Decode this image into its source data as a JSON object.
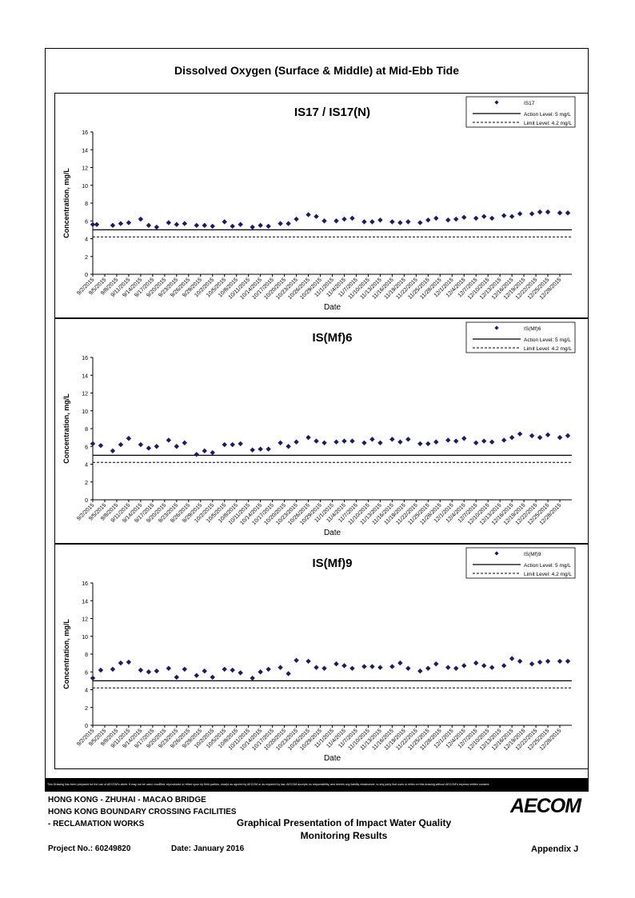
{
  "page": {
    "title": "Dissolved Oxygen (Surface & Middle) at Mid-Ebb Tide",
    "disclaimer": "This Drawing has been prepared for the use of AECOM's client. It may not be used, modified, reproduced or relied upon by third parties, except as agreed by AECOM or as required by law. AECOM accepts no responsibility, and denies any liability whatsoever, to any party that uses or relies on this drawing without AECOM's express written consent."
  },
  "footer": {
    "line1": "HONG KONG - ZHUHAI - MACAO BRIDGE",
    "line2": "HONG KONG BOUNDARY CROSSING FACILITIES",
    "line3": "- RECLAMATION WORKS",
    "project": "Project No.: 60249820",
    "date": "Date: January 2016",
    "center_title_1": "Graphical Presentation of Impact Water Quality",
    "center_title_2": "Monitoring Results",
    "appendix": "Appendix J",
    "logo": "AECOM"
  },
  "colors": {
    "marker": "#1a1a6e",
    "line": "#000000"
  },
  "chart_data": [
    {
      "type": "scatter",
      "title": "IS17 / IS17(N)",
      "xlabel": "Date",
      "ylabel": "Concentration, mg/L",
      "ylim": [
        0,
        16
      ],
      "yticks": [
        0,
        2,
        4,
        6,
        8,
        10,
        12,
        14,
        16
      ],
      "xlim": [
        "9/2/2015",
        "12/31/2015"
      ],
      "xticks": [
        "9/2/2015",
        "9/5/2015",
        "9/8/2015",
        "9/11/2015",
        "9/14/2015",
        "9/17/2015",
        "9/20/2015",
        "9/23/2015",
        "9/26/2015",
        "9/29/2015",
        "10/2/2015",
        "10/5/2015",
        "10/8/2015",
        "10/11/2015",
        "10/14/2015",
        "10/17/2015",
        "10/20/2015",
        "10/23/2015",
        "10/26/2015",
        "10/29/2015",
        "11/1/2015",
        "11/4/2015",
        "11/7/2015",
        "11/10/2015",
        "11/13/2015",
        "11/16/2015",
        "11/19/2015",
        "11/22/2015",
        "11/25/2015",
        "11/28/2015",
        "12/1/2015",
        "12/4/2015",
        "12/7/2015",
        "12/10/2015",
        "12/13/2015",
        "12/16/2015",
        "12/19/2015",
        "12/22/2015",
        "12/25/2015",
        "12/28/2015"
      ],
      "legend": [
        "IS17",
        "Action Level: 5 mg/L",
        "Limit Level: 4.2 mg/L"
      ],
      "legend_position": "top-right",
      "action_level": 5,
      "limit_level": 4.2,
      "series": [
        {
          "name": "IS17",
          "points": [
            [
              "9/2/2015",
              5.6
            ],
            [
              "9/3/2015",
              5.6
            ],
            [
              "9/7/2015",
              5.5
            ],
            [
              "9/9/2015",
              5.7
            ],
            [
              "9/11/2015",
              5.8
            ],
            [
              "9/14/2015",
              6.2
            ],
            [
              "9/16/2015",
              5.5
            ],
            [
              "9/18/2015",
              5.3
            ],
            [
              "9/21/2015",
              5.8
            ],
            [
              "9/23/2015",
              5.6
            ],
            [
              "9/25/2015",
              5.7
            ],
            [
              "9/28/2015",
              5.5
            ],
            [
              "9/30/2015",
              5.5
            ],
            [
              "10/2/2015",
              5.4
            ],
            [
              "10/5/2015",
              5.9
            ],
            [
              "10/7/2015",
              5.4
            ],
            [
              "10/9/2015",
              5.6
            ],
            [
              "10/12/2015",
              5.3
            ],
            [
              "10/14/2015",
              5.5
            ],
            [
              "10/16/2015",
              5.4
            ],
            [
              "10/19/2015",
              5.7
            ],
            [
              "10/21/2015",
              5.7
            ],
            [
              "10/23/2015",
              6.2
            ],
            [
              "10/26/2015",
              6.7
            ],
            [
              "10/28/2015",
              6.5
            ],
            [
              "10/30/2015",
              6.0
            ],
            [
              "11/2/2015",
              6.0
            ],
            [
              "11/4/2015",
              6.2
            ],
            [
              "11/6/2015",
              6.3
            ],
            [
              "11/9/2015",
              5.9
            ],
            [
              "11/11/2015",
              5.9
            ],
            [
              "11/13/2015",
              6.1
            ],
            [
              "11/16/2015",
              5.9
            ],
            [
              "11/18/2015",
              5.8
            ],
            [
              "11/20/2015",
              5.9
            ],
            [
              "11/23/2015",
              5.8
            ],
            [
              "11/25/2015",
              6.1
            ],
            [
              "11/27/2015",
              6.3
            ],
            [
              "11/30/2015",
              6.1
            ],
            [
              "12/2/2015",
              6.2
            ],
            [
              "12/4/2015",
              6.4
            ],
            [
              "12/7/2015",
              6.3
            ],
            [
              "12/9/2015",
              6.5
            ],
            [
              "12/11/2015",
              6.3
            ],
            [
              "12/14/2015",
              6.6
            ],
            [
              "12/16/2015",
              6.5
            ],
            [
              "12/18/2015",
              6.8
            ],
            [
              "12/21/2015",
              6.8
            ],
            [
              "12/23/2015",
              7.0
            ],
            [
              "12/25/2015",
              7.0
            ],
            [
              "12/28/2015",
              6.9
            ],
            [
              "12/30/2015",
              6.9
            ]
          ]
        }
      ]
    },
    {
      "type": "scatter",
      "title": "IS(Mf)6",
      "xlabel": "Date",
      "ylabel": "Concentration, mg/L",
      "ylim": [
        0,
        16
      ],
      "yticks": [
        0,
        2,
        4,
        6,
        8,
        10,
        12,
        14,
        16
      ],
      "xlim": [
        "9/2/2015",
        "12/31/2015"
      ],
      "xticks": [
        "9/2/2015",
        "9/5/2015",
        "9/8/2015",
        "9/11/2015",
        "9/14/2015",
        "9/17/2015",
        "9/20/2015",
        "9/23/2015",
        "9/26/2015",
        "9/29/2015",
        "10/2/2015",
        "10/5/2015",
        "10/8/2015",
        "10/11/2015",
        "10/14/2015",
        "10/17/2015",
        "10/20/2015",
        "10/23/2015",
        "10/26/2015",
        "10/29/2015",
        "11/1/2015",
        "11/4/2015",
        "11/7/2015",
        "11/10/2015",
        "11/13/2015",
        "11/16/2015",
        "11/19/2015",
        "11/22/2015",
        "11/25/2015",
        "11/28/2015",
        "12/1/2015",
        "12/4/2015",
        "12/7/2015",
        "12/10/2015",
        "12/13/2015",
        "12/16/2015",
        "12/19/2015",
        "12/22/2015",
        "12/25/2015",
        "12/28/2015"
      ],
      "legend": [
        "IS(Mf)6",
        "Action Level: 5 mg/L",
        "Limit Level: 4.2 mg/L"
      ],
      "legend_position": "top-right",
      "action_level": 5,
      "limit_level": 4.2,
      "series": [
        {
          "name": "IS(Mf)6",
          "points": [
            [
              "9/2/2015",
              6.3
            ],
            [
              "9/4/2015",
              6.1
            ],
            [
              "9/7/2015",
              5.5
            ],
            [
              "9/9/2015",
              6.2
            ],
            [
              "9/11/2015",
              6.9
            ],
            [
              "9/14/2015",
              6.2
            ],
            [
              "9/16/2015",
              5.8
            ],
            [
              "9/18/2015",
              6.0
            ],
            [
              "9/21/2015",
              6.7
            ],
            [
              "9/23/2015",
              6.0
            ],
            [
              "9/25/2015",
              6.4
            ],
            [
              "9/28/2015",
              5.1
            ],
            [
              "9/30/2015",
              5.5
            ],
            [
              "10/2/2015",
              5.3
            ],
            [
              "10/5/2015",
              6.2
            ],
            [
              "10/7/2015",
              6.2
            ],
            [
              "10/9/2015",
              6.3
            ],
            [
              "10/12/2015",
              5.6
            ],
            [
              "10/14/2015",
              5.7
            ],
            [
              "10/16/2015",
              5.7
            ],
            [
              "10/19/2015",
              6.4
            ],
            [
              "10/21/2015",
              6.0
            ],
            [
              "10/23/2015",
              6.5
            ],
            [
              "10/26/2015",
              7.0
            ],
            [
              "10/28/2015",
              6.6
            ],
            [
              "10/30/2015",
              6.4
            ],
            [
              "11/2/2015",
              6.5
            ],
            [
              "11/4/2015",
              6.6
            ],
            [
              "11/6/2015",
              6.6
            ],
            [
              "11/9/2015",
              6.4
            ],
            [
              "11/11/2015",
              6.8
            ],
            [
              "11/13/2015",
              6.4
            ],
            [
              "11/16/2015",
              6.8
            ],
            [
              "11/18/2015",
              6.5
            ],
            [
              "11/20/2015",
              6.8
            ],
            [
              "11/23/2015",
              6.3
            ],
            [
              "11/25/2015",
              6.3
            ],
            [
              "11/27/2015",
              6.5
            ],
            [
              "11/30/2015",
              6.7
            ],
            [
              "12/2/2015",
              6.6
            ],
            [
              "12/4/2015",
              6.9
            ],
            [
              "12/7/2015",
              6.4
            ],
            [
              "12/9/2015",
              6.6
            ],
            [
              "12/11/2015",
              6.5
            ],
            [
              "12/14/2015",
              6.7
            ],
            [
              "12/16/2015",
              7.0
            ],
            [
              "12/18/2015",
              7.4
            ],
            [
              "12/21/2015",
              7.2
            ],
            [
              "12/23/2015",
              7.0
            ],
            [
              "12/25/2015",
              7.3
            ],
            [
              "12/28/2015",
              7.0
            ],
            [
              "12/30/2015",
              7.2
            ]
          ]
        }
      ]
    },
    {
      "type": "scatter",
      "title": "IS(Mf)9",
      "xlabel": "Date",
      "ylabel": "Concentration, mg/L",
      "ylim": [
        0,
        16
      ],
      "yticks": [
        0,
        2,
        4,
        6,
        8,
        10,
        12,
        14,
        16
      ],
      "xlim": [
        "9/2/2015",
        "12/31/2015"
      ],
      "xticks": [
        "9/2/2015",
        "9/5/2015",
        "9/8/2015",
        "9/11/2015",
        "9/14/2015",
        "9/17/2015",
        "9/20/2015",
        "9/23/2015",
        "9/26/2015",
        "9/29/2015",
        "10/2/2015",
        "10/5/2015",
        "10/8/2015",
        "10/11/2015",
        "10/14/2015",
        "10/17/2015",
        "10/20/2015",
        "10/23/2015",
        "10/26/2015",
        "10/29/2015",
        "11/1/2015",
        "11/4/2015",
        "11/7/2015",
        "11/10/2015",
        "11/13/2015",
        "11/16/2015",
        "11/19/2015",
        "11/22/2015",
        "11/25/2015",
        "11/28/2015",
        "12/1/2015",
        "12/4/2015",
        "12/7/2015",
        "12/10/2015",
        "12/13/2015",
        "12/16/2015",
        "12/19/2015",
        "12/22/2015",
        "12/25/2015",
        "12/28/2015"
      ],
      "legend": [
        "IS(Mf)9",
        "Action Level: 5 mg/L",
        "Limit Level: 4.2 mg/L"
      ],
      "legend_position": "top-right",
      "action_level": 5,
      "limit_level": 4.2,
      "series": [
        {
          "name": "IS(Mf)9",
          "points": [
            [
              "9/2/2015",
              5.3
            ],
            [
              "9/4/2015",
              6.2
            ],
            [
              "9/7/2015",
              6.3
            ],
            [
              "9/9/2015",
              7.0
            ],
            [
              "9/11/2015",
              7.1
            ],
            [
              "9/14/2015",
              6.2
            ],
            [
              "9/16/2015",
              6.0
            ],
            [
              "9/18/2015",
              6.1
            ],
            [
              "9/21/2015",
              6.4
            ],
            [
              "9/23/2015",
              5.4
            ],
            [
              "9/25/2015",
              6.3
            ],
            [
              "9/28/2015",
              5.6
            ],
            [
              "9/30/2015",
              6.1
            ],
            [
              "10/2/2015",
              5.4
            ],
            [
              "10/5/2015",
              6.3
            ],
            [
              "10/7/2015",
              6.2
            ],
            [
              "10/9/2015",
              5.9
            ],
            [
              "10/12/2015",
              5.3
            ],
            [
              "10/14/2015",
              6.0
            ],
            [
              "10/16/2015",
              6.3
            ],
            [
              "10/19/2015",
              6.5
            ],
            [
              "10/21/2015",
              5.8
            ],
            [
              "10/23/2015",
              7.3
            ],
            [
              "10/26/2015",
              7.2
            ],
            [
              "10/28/2015",
              6.5
            ],
            [
              "10/30/2015",
              6.4
            ],
            [
              "11/2/2015",
              6.9
            ],
            [
              "11/4/2015",
              6.7
            ],
            [
              "11/6/2015",
              6.4
            ],
            [
              "11/9/2015",
              6.6
            ],
            [
              "11/11/2015",
              6.6
            ],
            [
              "11/13/2015",
              6.5
            ],
            [
              "11/16/2015",
              6.6
            ],
            [
              "11/18/2015",
              7.0
            ],
            [
              "11/20/2015",
              6.4
            ],
            [
              "11/23/2015",
              6.1
            ],
            [
              "11/25/2015",
              6.4
            ],
            [
              "11/27/2015",
              6.9
            ],
            [
              "11/30/2015",
              6.5
            ],
            [
              "12/2/2015",
              6.4
            ],
            [
              "12/4/2015",
              6.7
            ],
            [
              "12/7/2015",
              7.0
            ],
            [
              "12/9/2015",
              6.7
            ],
            [
              "12/11/2015",
              6.5
            ],
            [
              "12/14/2015",
              6.7
            ],
            [
              "12/16/2015",
              7.5
            ],
            [
              "12/18/2015",
              7.2
            ],
            [
              "12/21/2015",
              6.9
            ],
            [
              "12/23/2015",
              7.1
            ],
            [
              "12/25/2015",
              7.2
            ],
            [
              "12/28/2015",
              7.2
            ],
            [
              "12/30/2015",
              7.2
            ]
          ]
        }
      ]
    }
  ]
}
